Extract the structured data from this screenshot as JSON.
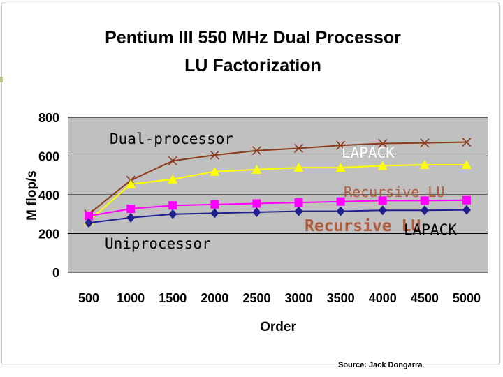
{
  "chart_data": {
    "type": "line",
    "title_lines": [
      "Pentium III 550 MHz Dual Processor",
      "LU Factorization"
    ],
    "xlabel": "Order",
    "ylabel": "M flop/s",
    "categories": [
      "500",
      "1000",
      "1500",
      "2000",
      "2500",
      "3000",
      "3500",
      "4000",
      "4500",
      "5000"
    ],
    "yticks": [
      "0",
      "200",
      "400",
      "600",
      "800"
    ],
    "ylim": [
      0,
      800
    ],
    "grid": true,
    "legend": "none",
    "series": [
      {
        "color": "#8b3a1a",
        "marker": "x",
        "values": [
          300,
          475,
          575,
          605,
          628,
          640,
          655,
          665,
          668,
          672
        ]
      },
      {
        "color": "#ffff00",
        "marker": "triangle",
        "values": [
          265,
          455,
          480,
          520,
          530,
          540,
          540,
          550,
          555,
          555
        ]
      },
      {
        "color": "#ff00ff",
        "marker": "square",
        "values": [
          290,
          328,
          345,
          350,
          355,
          360,
          365,
          370,
          370,
          372
        ]
      },
      {
        "color": "#1f1f8f",
        "marker": "diamond",
        "values": [
          255,
          282,
          300,
          305,
          310,
          315,
          315,
          320,
          320,
          322
        ]
      }
    ],
    "annotations": [
      {
        "text": "Dual-processor",
        "color": "#000000"
      },
      {
        "text": "LAPACK",
        "color": "#ffffff"
      },
      {
        "text": "Recursive LU",
        "color": "#b05a3c"
      },
      {
        "text": "Uniprocessor",
        "color": "#000000"
      },
      {
        "text": "Recursive LU",
        "color": "#b05a3c"
      },
      {
        "text": "LAPACK",
        "color": "#000000"
      }
    ]
  },
  "source": "Source: Jack Dongarra"
}
